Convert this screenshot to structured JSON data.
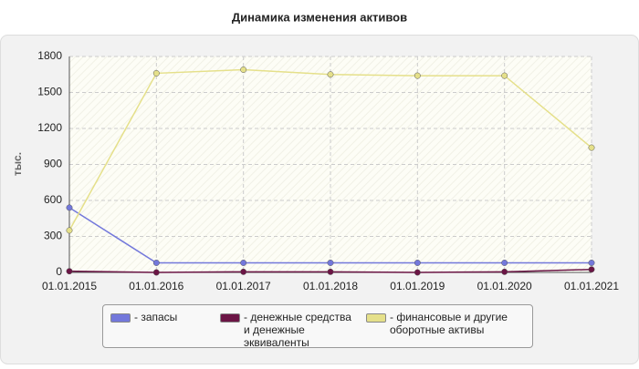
{
  "chart_data": {
    "type": "line",
    "title": "Динамика изменения активов",
    "y_label": "тыс.",
    "categories": [
      "01.01.2015",
      "01.01.2016",
      "01.01.2017",
      "01.01.2018",
      "01.01.2019",
      "01.01.2020",
      "01.01.2021"
    ],
    "series": [
      {
        "name": "- запасы",
        "color": "#7378db",
        "values": [
          540,
          80,
          80,
          80,
          80,
          80,
          80
        ]
      },
      {
        "name": "- денежные средства и денежные эквиваленты",
        "color": "#6b1545",
        "values": [
          10,
          0,
          5,
          5,
          0,
          5,
          25
        ]
      },
      {
        "name": "- финансовые и другие оборотные активы",
        "color": "#e5e08a",
        "values": [
          350,
          1660,
          1690,
          1650,
          1640,
          1640,
          1040
        ]
      }
    ],
    "ylim": [
      0,
      1800
    ],
    "yticks": [
      0,
      300,
      600,
      900,
      1200,
      1500,
      1800
    ],
    "grid": true
  }
}
